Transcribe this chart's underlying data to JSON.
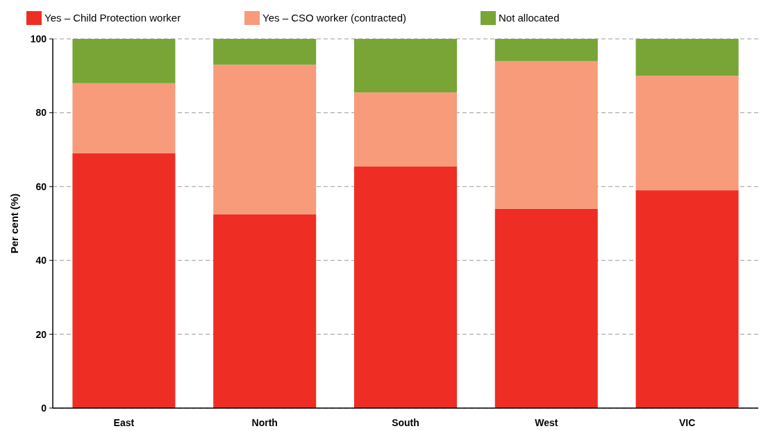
{
  "chart_data": {
    "type": "bar",
    "stacked": true,
    "ylabel": "Per cent (%)",
    "categories": [
      "East",
      "North",
      "South",
      "West",
      "VIC"
    ],
    "series": [
      {
        "name": "Yes – Child Protection worker",
        "color": "#ee2e24",
        "values": [
          69,
          52.5,
          65.5,
          54,
          59
        ]
      },
      {
        "name": "Yes – CSO worker (contracted)",
        "color": "#f79b7b",
        "values": [
          19,
          40.5,
          20,
          40,
          31
        ]
      },
      {
        "name": "Not allocated",
        "color": "#78a536",
        "values": [
          12,
          7,
          14.5,
          6,
          10
        ]
      }
    ],
    "ylim": [
      0,
      100
    ],
    "yticks": [
      0,
      20,
      40,
      60,
      80,
      100
    ],
    "grid": "y",
    "legend": "top left"
  }
}
